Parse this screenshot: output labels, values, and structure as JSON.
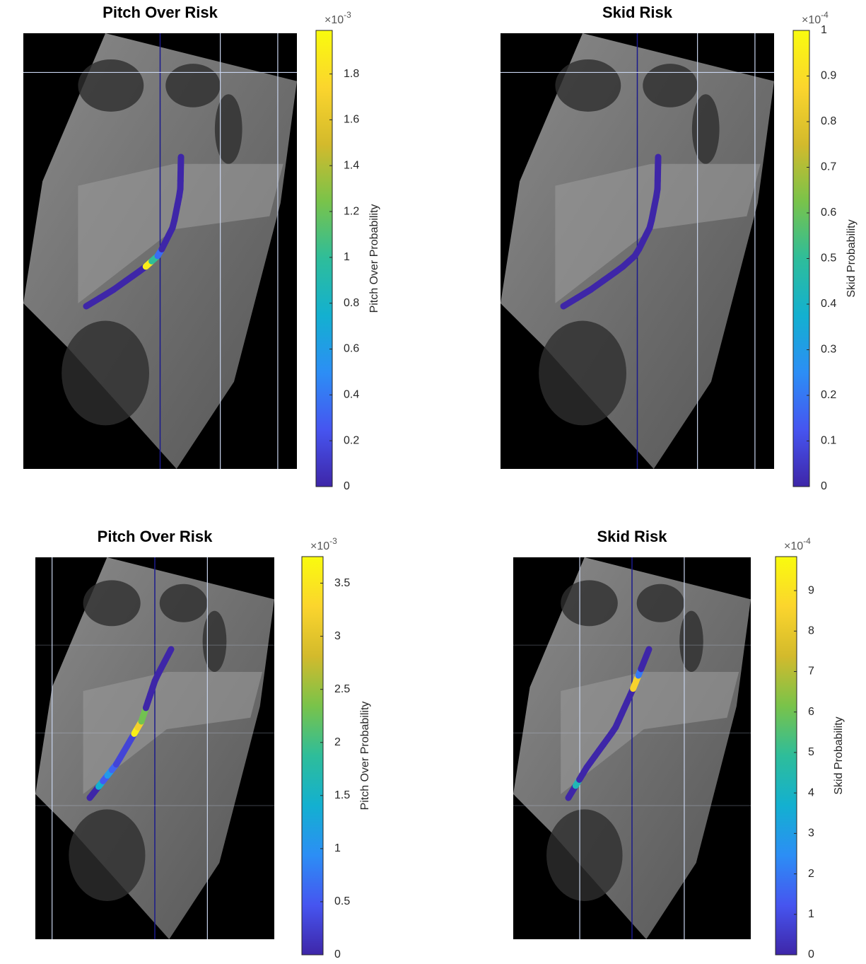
{
  "chart_data": [
    {
      "type": "line",
      "title": "Pitch Over Risk",
      "colorbar_label": "Pitch Over Probability",
      "multiplier": "×10",
      "exponent": "-3",
      "clim": [
        0,
        1.99
      ],
      "cticks": [
        0,
        0.2,
        0.4,
        0.6,
        0.8,
        1,
        1.2,
        1.4,
        1.6,
        1.8
      ],
      "values": [
        0,
        0,
        0,
        0,
        0,
        0,
        0,
        0,
        0,
        1.9,
        1.0,
        0.35,
        0,
        0,
        0,
        0,
        0,
        0,
        0,
        0,
        0,
        0,
        0,
        0
      ]
    },
    {
      "type": "line",
      "title": "Skid Risk",
      "colorbar_label": "Skid Probability",
      "multiplier": "×10",
      "exponent": "-4",
      "clim": [
        0,
        1
      ],
      "cticks": [
        0,
        0.1,
        0.2,
        0.3,
        0.4,
        0.5,
        0.6,
        0.7,
        0.8,
        0.9,
        1
      ],
      "values": [
        0,
        0,
        0,
        0,
        0,
        0,
        0,
        0,
        0,
        0,
        0,
        0,
        0,
        0,
        0,
        0,
        0,
        0,
        0,
        0,
        0,
        0,
        0,
        0
      ]
    },
    {
      "type": "line",
      "title": "Pitch Over Risk",
      "colorbar_label": "Pitch Over Probability",
      "multiplier": "×10",
      "exponent": "-3",
      "clim": [
        0,
        3.75
      ],
      "cticks": [
        0,
        0.5,
        1,
        1.5,
        2,
        2.5,
        3,
        3.5
      ],
      "values": [
        0,
        0,
        1.4,
        0.5,
        1.1,
        0.6,
        0.3,
        0.3,
        0.3,
        0.3,
        0.3,
        3.6,
        3.2,
        2.3,
        2.3,
        0,
        0,
        0,
        0,
        0,
        0,
        0,
        0,
        0
      ]
    },
    {
      "type": "line",
      "title": "Skid Risk",
      "colorbar_label": "Skid Probability",
      "multiplier": "×10",
      "exponent": "-4",
      "clim": [
        0,
        9.84
      ],
      "cticks": [
        0,
        1,
        2,
        3,
        4,
        5,
        6,
        7,
        8,
        9
      ],
      "values": [
        0,
        0,
        4.3,
        0,
        0,
        0,
        0,
        0,
        0,
        0,
        0,
        0,
        0,
        0,
        0,
        0,
        0,
        0,
        8.5,
        8.5,
        2.0,
        0,
        0,
        0
      ]
    }
  ],
  "colormap": [
    "#3e26a8",
    "#4655f0",
    "#2c8ef5",
    "#13b0d0",
    "#2ebd9a",
    "#79c34a",
    "#d3ba2c",
    "#fbd52d",
    "#f9fb0e"
  ]
}
